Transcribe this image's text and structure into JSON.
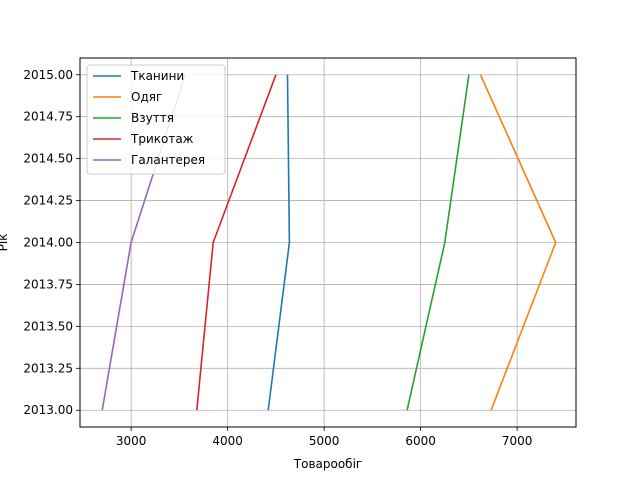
{
  "chart_data": {
    "type": "line",
    "xlabel": "Товарообіг",
    "ylabel": "Рік",
    "xlim": [
      2470,
      7610
    ],
    "ylim": [
      2012.9,
      2015.1
    ],
    "xticks": [
      3000,
      4000,
      5000,
      6000,
      7000
    ],
    "xtick_labels": [
      "3000",
      "4000",
      "5000",
      "6000",
      "7000"
    ],
    "yticks": [
      2013.0,
      2013.25,
      2013.5,
      2013.75,
      2014.0,
      2014.25,
      2014.5,
      2014.75,
      2015.0
    ],
    "ytick_labels": [
      "2013.00",
      "2013.25",
      "2013.50",
      "2013.75",
      "2014.00",
      "2014.25",
      "2014.50",
      "2014.75",
      "2015.00"
    ],
    "grid": true,
    "legend_position": "top-left",
    "series": [
      {
        "name": "Тканини",
        "color": "#1f77b4",
        "x": [
          4420,
          4640,
          4620
        ],
        "y": [
          2013,
          2014,
          2015
        ]
      },
      {
        "name": "Одяг",
        "color": "#ff7f0e",
        "x": [
          6730,
          7400,
          6620
        ],
        "y": [
          2013,
          2014,
          2015
        ]
      },
      {
        "name": "Взуття",
        "color": "#2ca02c",
        "x": [
          5860,
          6250,
          6500
        ],
        "y": [
          2013,
          2014,
          2015
        ]
      },
      {
        "name": "Трикотаж",
        "color": "#d62728",
        "x": [
          3680,
          3850,
          4500
        ],
        "y": [
          2013,
          2014,
          2015
        ]
      },
      {
        "name": "Галантерея",
        "color": "#9467bd",
        "x": [
          2700,
          3000,
          3560
        ],
        "y": [
          2013,
          2014,
          2015
        ]
      }
    ]
  }
}
